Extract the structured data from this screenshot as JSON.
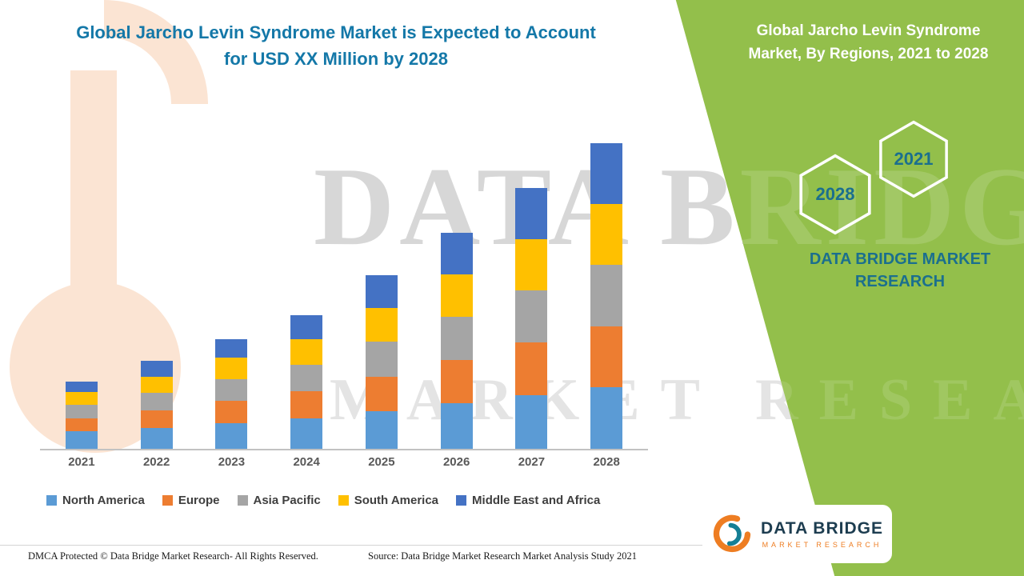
{
  "main_title": {
    "line1": "Global Jarcho Levin Syndrome Market is Expected to Account",
    "line2": "for USD XX Million by 2028"
  },
  "watermark": {
    "line1": "DATA BRIDGE",
    "line2": "MARKET RESEARCH"
  },
  "panel": {
    "title_line1": "Global Jarcho Levin Syndrome",
    "title_line2": "Market, By Regions, 2021 to 2028",
    "hexagons": [
      {
        "label": "2028"
      },
      {
        "label": "2021"
      }
    ],
    "brand_line1": "DATA BRIDGE MARKET",
    "brand_line2": "RESEARCH",
    "background_color": "#93bf4b",
    "accent_text_color": "#1b6f8e"
  },
  "logo": {
    "name": "DATA BRIDGE",
    "sub": "MARKET RESEARCH"
  },
  "footer": {
    "left": "DMCA Protected © Data Bridge Market Research- All Rights Reserved.",
    "right": "Source: Data Bridge Market Research Market Analysis Study 2021"
  },
  "chart_data": {
    "type": "bar",
    "stacked": true,
    "title": "Global Jarcho Levin Syndrome Market is Expected to Account for USD XX Million by 2028",
    "xlabel": "",
    "ylabel": "",
    "y_axis": "hidden",
    "grid": false,
    "legend_position": "bottom",
    "ylim": [
      0,
      400
    ],
    "categories": [
      "2021",
      "2022",
      "2023",
      "2024",
      "2025",
      "2026",
      "2027",
      "2028"
    ],
    "series": [
      {
        "name": "North America",
        "color": "#5b9bd5",
        "values": [
          22,
          27,
          33,
          39,
          48,
          58,
          68,
          78
        ]
      },
      {
        "name": "Europe",
        "color": "#ed7d31",
        "values": [
          17,
          22,
          28,
          34,
          44,
          55,
          67,
          78
        ]
      },
      {
        "name": "Asia Pacific",
        "color": "#a5a5a5",
        "values": [
          17,
          22,
          28,
          34,
          44,
          55,
          67,
          78
        ]
      },
      {
        "name": "South America",
        "color": "#ffc000",
        "values": [
          16,
          21,
          27,
          33,
          43,
          54,
          65,
          78
        ]
      },
      {
        "name": "Middle East and Africa",
        "color": "#4472c4",
        "values": [
          14,
          20,
          24,
          30,
          42,
          53,
          65,
          77
        ]
      }
    ],
    "totals": [
      86,
      112,
      140,
      170,
      221,
      275,
      332,
      389
    ]
  }
}
